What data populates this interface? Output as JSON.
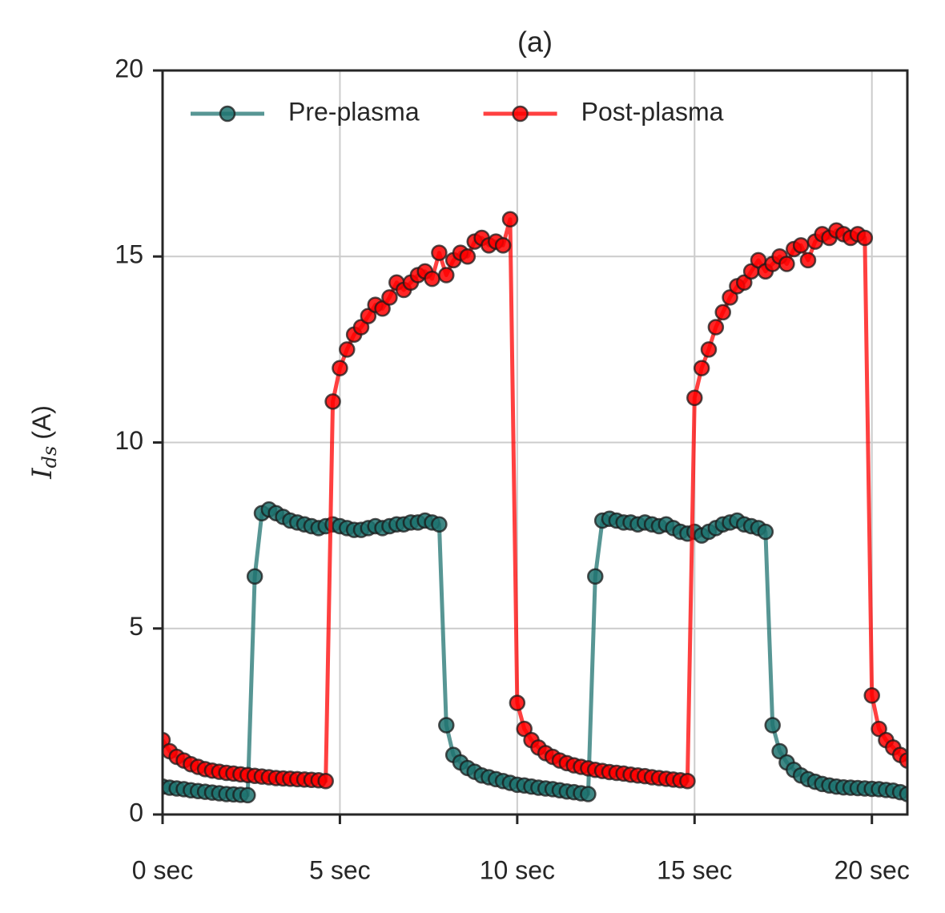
{
  "chart_data": {
    "type": "line",
    "title": "(a)",
    "ylabel": {
      "symbol": "I",
      "subscript": "ds",
      "unit": "(A)"
    },
    "xlim": [
      0,
      21
    ],
    "ylim": [
      0,
      20
    ],
    "xticks": [
      {
        "value": 0,
        "label": "0 sec"
      },
      {
        "value": 5,
        "label": "5 sec"
      },
      {
        "value": 10,
        "label": "10 sec"
      },
      {
        "value": 15,
        "label": "15 sec"
      },
      {
        "value": 20,
        "label": "20 sec"
      }
    ],
    "yticks": [
      0,
      5,
      10,
      15,
      20
    ],
    "grid": true,
    "legend": "upper left",
    "x": [
      0,
      0.2,
      0.4,
      0.6,
      0.8,
      1.0,
      1.2,
      1.4,
      1.6,
      1.8,
      2.0,
      2.2,
      2.4,
      2.6,
      2.8,
      3.0,
      3.2,
      3.4,
      3.6,
      3.8,
      4.0,
      4.2,
      4.4,
      4.6,
      4.8,
      5.0,
      5.2,
      5.4,
      5.6,
      5.8,
      6.0,
      6.2,
      6.4,
      6.6,
      6.8,
      7.0,
      7.2,
      7.4,
      7.6,
      7.8,
      8.0,
      8.2,
      8.4,
      8.6,
      8.8,
      9.0,
      9.2,
      9.4,
      9.6,
      9.8,
      10.0,
      10.2,
      10.4,
      10.6,
      10.8,
      11.0,
      11.2,
      11.4,
      11.6,
      11.8,
      12.0,
      12.2,
      12.4,
      12.6,
      12.8,
      13.0,
      13.2,
      13.4,
      13.6,
      13.8,
      14.0,
      14.2,
      14.4,
      14.6,
      14.8,
      15.0,
      15.2,
      15.4,
      15.6,
      15.8,
      16.0,
      16.2,
      16.4,
      16.6,
      16.8,
      17.0,
      17.2,
      17.4,
      17.6,
      17.8,
      18.0,
      18.2,
      18.4,
      18.6,
      18.8,
      19.0,
      19.2,
      19.4,
      19.6,
      19.8,
      20.0,
      20.2,
      20.4,
      20.6,
      20.8,
      21.0
    ],
    "series": [
      {
        "name": "Pre-plasma",
        "color": "#1f7370",
        "values": [
          0.75,
          0.72,
          0.7,
          0.68,
          0.65,
          0.63,
          0.61,
          0.59,
          0.57,
          0.55,
          0.54,
          0.53,
          0.52,
          6.4,
          8.1,
          8.2,
          8.1,
          8.0,
          7.9,
          7.85,
          7.8,
          7.75,
          7.7,
          7.75,
          7.8,
          7.75,
          7.7,
          7.65,
          7.65,
          7.7,
          7.75,
          7.7,
          7.75,
          7.8,
          7.8,
          7.85,
          7.85,
          7.9,
          7.85,
          7.8,
          2.4,
          1.6,
          1.4,
          1.25,
          1.15,
          1.05,
          1.0,
          0.95,
          0.9,
          0.85,
          0.8,
          0.78,
          0.75,
          0.72,
          0.7,
          0.68,
          0.65,
          0.62,
          0.6,
          0.57,
          0.55,
          6.4,
          7.9,
          7.95,
          7.9,
          7.85,
          7.85,
          7.8,
          7.85,
          7.8,
          7.75,
          7.8,
          7.7,
          7.6,
          7.55,
          7.6,
          7.5,
          7.6,
          7.7,
          7.8,
          7.85,
          7.9,
          7.8,
          7.75,
          7.7,
          7.6,
          2.4,
          1.7,
          1.4,
          1.2,
          1.05,
          0.95,
          0.88,
          0.82,
          0.78,
          0.75,
          0.73,
          0.72,
          0.71,
          0.7,
          0.69,
          0.68,
          0.66,
          0.64,
          0.6,
          0.55
        ]
      },
      {
        "name": "Post-plasma",
        "color": "#ff0000",
        "values": [
          2.0,
          1.7,
          1.55,
          1.45,
          1.35,
          1.28,
          1.22,
          1.18,
          1.15,
          1.12,
          1.1,
          1.08,
          1.06,
          1.04,
          1.02,
          1.0,
          0.98,
          0.97,
          0.96,
          0.95,
          0.94,
          0.93,
          0.92,
          0.9,
          11.1,
          12.0,
          12.5,
          12.9,
          13.1,
          13.4,
          13.7,
          13.6,
          13.9,
          14.3,
          14.1,
          14.3,
          14.5,
          14.6,
          14.4,
          15.1,
          14.5,
          14.9,
          15.1,
          15.0,
          15.4,
          15.5,
          15.3,
          15.4,
          15.3,
          16.0,
          3.0,
          2.3,
          2.0,
          1.8,
          1.65,
          1.55,
          1.45,
          1.38,
          1.32,
          1.28,
          1.24,
          1.2,
          1.17,
          1.14,
          1.12,
          1.1,
          1.07,
          1.05,
          1.03,
          1.0,
          0.98,
          0.96,
          0.94,
          0.92,
          0.9,
          11.2,
          12.0,
          12.5,
          13.1,
          13.5,
          13.9,
          14.2,
          14.3,
          14.6,
          14.9,
          14.6,
          14.8,
          15.0,
          14.8,
          15.2,
          15.3,
          14.9,
          15.4,
          15.6,
          15.5,
          15.7,
          15.6,
          15.5,
          15.6,
          15.5,
          3.2,
          2.3,
          2.0,
          1.8,
          1.6,
          1.45
        ]
      }
    ]
  }
}
